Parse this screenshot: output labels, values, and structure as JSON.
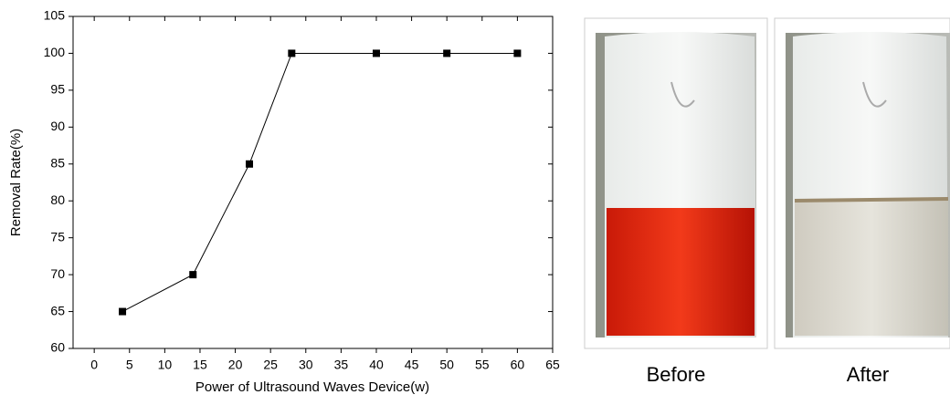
{
  "chart_data": {
    "type": "line",
    "xlabel": "Power of Ultrasound Waves Device(w)",
    "ylabel": "Removal Rate(%)",
    "x": [
      4,
      14,
      22,
      28,
      40,
      50,
      60
    ],
    "values": [
      65,
      70,
      85,
      100,
      100,
      100,
      100
    ],
    "color": "#000000",
    "xlim": [
      -3,
      65
    ],
    "xticks": [
      0,
      5,
      10,
      15,
      20,
      25,
      30,
      35,
      40,
      45,
      50,
      55,
      60,
      65
    ],
    "ylim": [
      60,
      105
    ],
    "yticks": [
      60,
      65,
      70,
      75,
      80,
      85,
      90,
      95,
      100,
      105
    ]
  },
  "photos": [
    {
      "caption": "Before"
    },
    {
      "caption": "After"
    }
  ]
}
